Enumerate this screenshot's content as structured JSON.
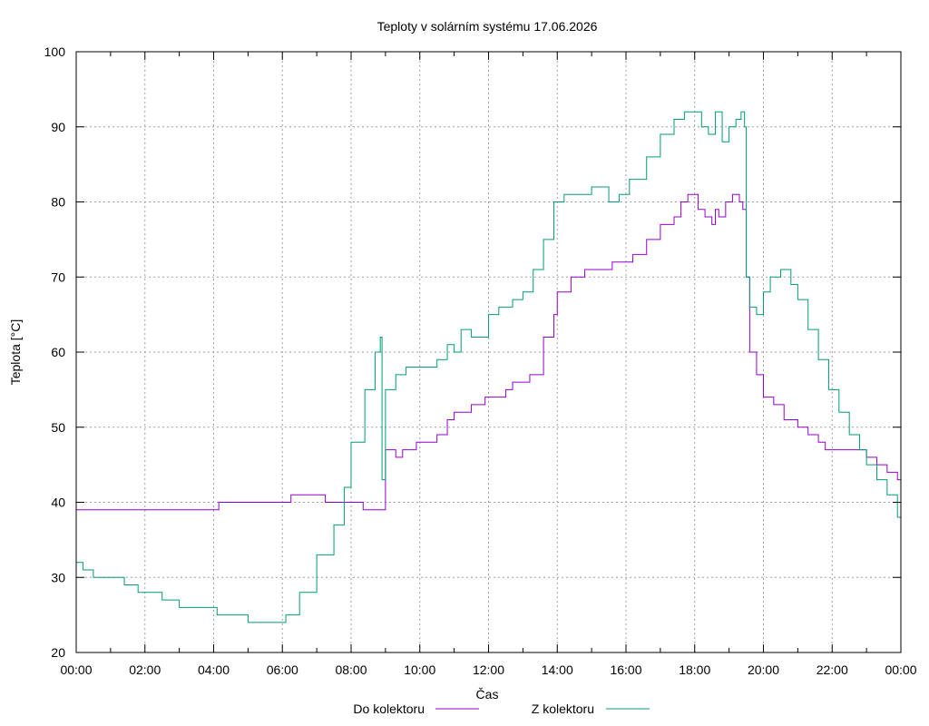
{
  "chart_data": {
    "type": "line",
    "title": "Teploty v solárním systému 17.06.2026",
    "xlabel": "Čas",
    "ylabel": "Teplota [°C]",
    "xlim": [
      0,
      24
    ],
    "ylim": [
      20,
      100
    ],
    "x_ticks": [
      "00:00",
      "02:00",
      "04:00",
      "06:00",
      "08:00",
      "10:00",
      "12:00",
      "14:00",
      "16:00",
      "18:00",
      "20:00",
      "22:00",
      "00:00"
    ],
    "y_ticks": [
      20,
      30,
      40,
      50,
      60,
      70,
      80,
      90,
      100
    ],
    "grid": true,
    "legend_position": "bottom",
    "series": [
      {
        "name": "Do kolektoru",
        "color": "#9400d3",
        "x": [
          0,
          4.1,
          4.15,
          6.2,
          6.25,
          7.2,
          7.25,
          8.3,
          8.35,
          8.9,
          9.0,
          9.3,
          9.5,
          9.9,
          10.5,
          10.8,
          11.0,
          11.5,
          11.9,
          12.1,
          12.5,
          12.7,
          13.2,
          13.3,
          13.6,
          13.9,
          14.0,
          14.4,
          14.8,
          15.3,
          15.6,
          16.0,
          16.2,
          16.6,
          17.0,
          17.4,
          17.6,
          17.8,
          18.0,
          18.1,
          18.3,
          18.5,
          18.6,
          18.7,
          18.9,
          19.1,
          19.3,
          19.4,
          19.5,
          19.6,
          19.8,
          20.0,
          20.3,
          20.6,
          21.0,
          21.3,
          21.6,
          21.8,
          22.2,
          22.4,
          22.7,
          23.0,
          23.3,
          23.6,
          23.9,
          24.0
        ],
        "y": [
          39,
          39,
          40,
          40,
          41,
          41,
          40,
          40,
          39,
          39,
          47,
          46,
          47,
          48,
          49,
          51,
          52,
          53,
          54,
          54,
          55,
          56,
          57,
          57,
          62,
          65,
          68,
          70,
          71,
          71,
          72,
          72,
          73,
          75,
          77,
          78,
          80,
          81,
          81,
          79,
          78,
          77,
          79,
          78,
          80,
          81,
          80,
          79,
          70,
          60,
          57,
          54,
          53,
          51,
          50,
          49,
          48,
          47,
          47,
          47,
          47,
          46,
          45,
          44,
          43,
          42
        ]
      },
      {
        "name": "Z kolektoru",
        "color": "#009e73",
        "x": [
          0,
          0.2,
          0.5,
          1.0,
          1.4,
          1.8,
          2.5,
          3.0,
          3.5,
          4.1,
          4.2,
          5.0,
          6.0,
          6.1,
          6.5,
          7.0,
          7.5,
          7.8,
          8.0,
          8.4,
          8.7,
          8.85,
          8.9,
          9.0,
          9.3,
          9.6,
          10.0,
          10.5,
          10.8,
          11.0,
          11.2,
          11.5,
          12.0,
          12.3,
          12.7,
          13.0,
          13.3,
          13.6,
          13.9,
          14.2,
          14.6,
          15.0,
          15.5,
          15.8,
          16.1,
          16.6,
          17.0,
          17.4,
          17.7,
          18.0,
          18.2,
          18.4,
          18.6,
          18.8,
          19.0,
          19.2,
          19.35,
          19.45,
          19.5,
          19.6,
          19.8,
          20.0,
          20.2,
          20.5,
          20.8,
          21.0,
          21.3,
          21.6,
          21.9,
          22.2,
          22.5,
          22.8,
          23.0,
          23.3,
          23.6,
          23.9,
          24.0
        ],
        "y": [
          32,
          31,
          30,
          30,
          29,
          28,
          27,
          26,
          26,
          25,
          25,
          24,
          24,
          25,
          28,
          33,
          37,
          42,
          48,
          55,
          60,
          62,
          43,
          55,
          57,
          58,
          58,
          59,
          61,
          60,
          63,
          62,
          65,
          66,
          67,
          68,
          71,
          75,
          80,
          81,
          81,
          82,
          80,
          81,
          83,
          86,
          89,
          91,
          92,
          92,
          90,
          89,
          92,
          88,
          90,
          91,
          92,
          90,
          70,
          66,
          65,
          68,
          70,
          71,
          69,
          67,
          63,
          59,
          55,
          52,
          49,
          47,
          45,
          43,
          41,
          38,
          37
        ]
      }
    ]
  }
}
